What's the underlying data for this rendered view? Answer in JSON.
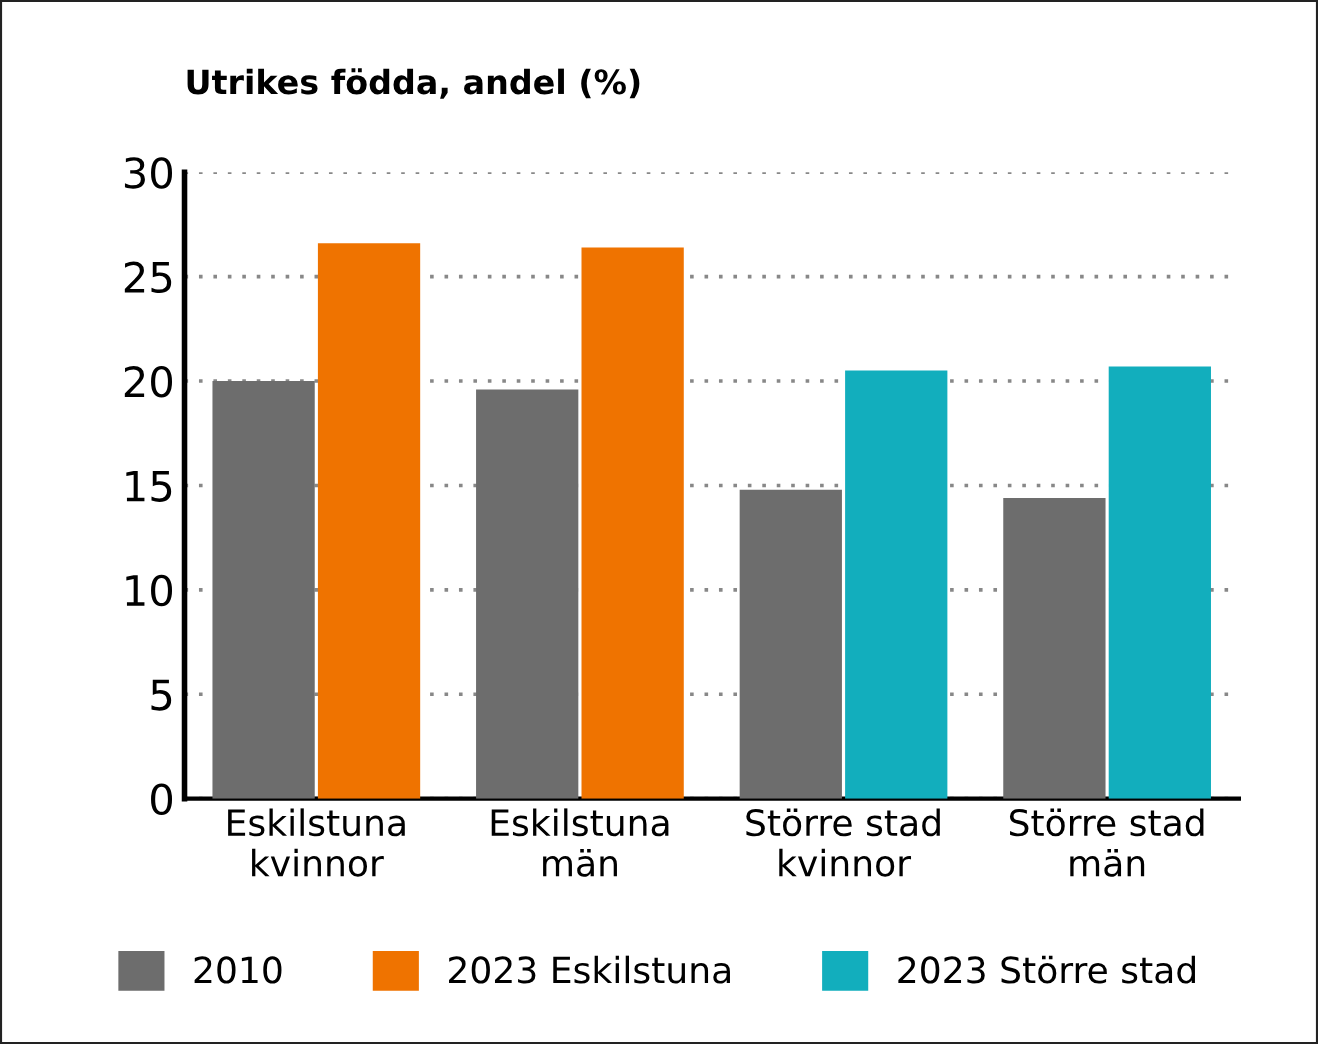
{
  "chart_data": {
    "type": "bar",
    "title": "Utrikes födda, andel (%)",
    "categories": [
      "Eskilstuna\nkvinnor",
      "Eskilstuna\nmän",
      "Större stad\nkvinnor",
      "Större stad\nmän"
    ],
    "series": [
      {
        "name": "2010",
        "color": "#6d6d6d",
        "values": [
          20.0,
          19.6,
          14.8,
          14.4
        ]
      },
      {
        "name": "2023 Eskilstuna",
        "color": "#ef7300",
        "values": [
          26.6,
          26.4,
          null,
          null
        ]
      },
      {
        "name": "2023 Större stad",
        "color": "#12aebd",
        "values": [
          null,
          null,
          20.5,
          20.7
        ]
      }
    ],
    "ylim": [
      0,
      30
    ],
    "yticks": [
      0,
      5,
      10,
      15,
      20,
      25,
      30
    ],
    "grid": "y",
    "legend": "bottom"
  }
}
